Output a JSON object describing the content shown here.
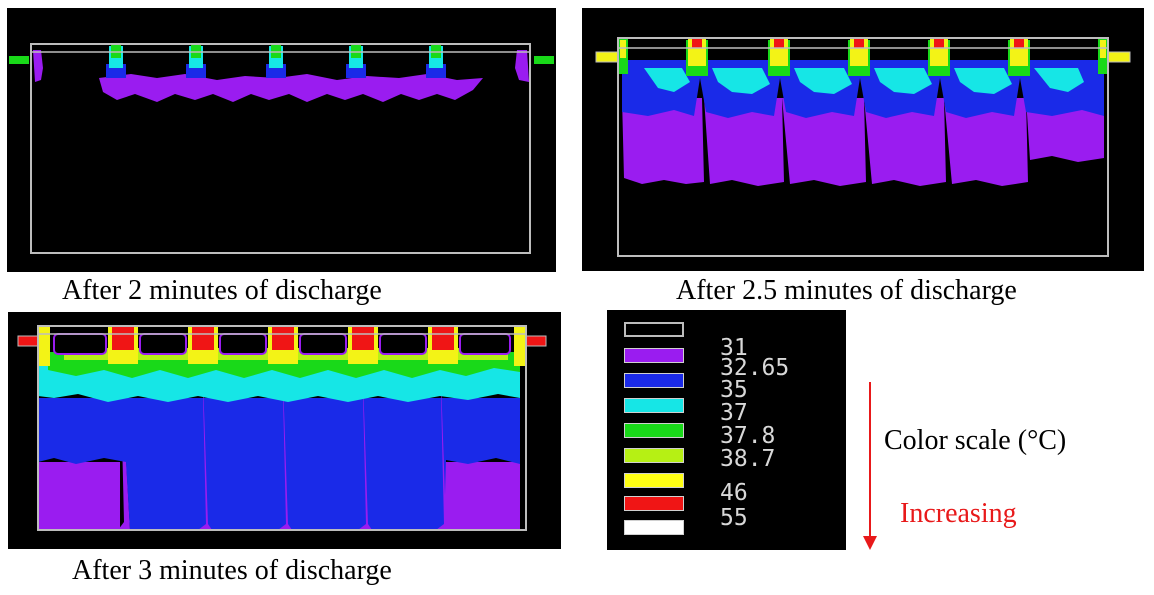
{
  "panels": [
    {
      "caption": "After 2 minutes of discharge"
    },
    {
      "caption": "After 2.5 minutes of discharge"
    },
    {
      "caption": "After 3 minutes of discharge"
    }
  ],
  "legend": {
    "title": "Color scale (°C)",
    "direction": "Increasing",
    "direction_color": "#e8191a",
    "entries": [
      {
        "label": "31",
        "color": "#000000"
      },
      {
        "label": "32.65",
        "color": "#9a1cf0"
      },
      {
        "label": "35",
        "color": "#1a2ae8"
      },
      {
        "label": "37",
        "color": "#16e6e6"
      },
      {
        "label": "37.8",
        "color": "#19d919"
      },
      {
        "label": "38.7",
        "color": "#b6f014"
      },
      {
        "label": "46",
        "color": "#f01515"
      },
      {
        "label": "55",
        "color": "#ffffff"
      }
    ]
  },
  "colors": {
    "background": "#000000",
    "frame": "#bdbdbd",
    "purple": "#9a1cf0",
    "blue": "#1a2ae8",
    "cyan": "#16e6e6",
    "green": "#19d919",
    "yellowgreen": "#b6f014",
    "yellow": "#f3f316",
    "red": "#f01515",
    "white": "#ffffff"
  }
}
